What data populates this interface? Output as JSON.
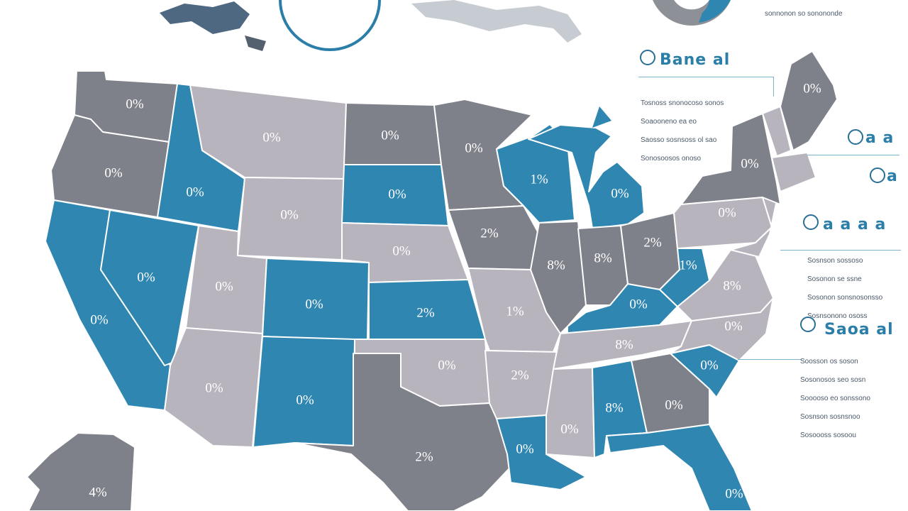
{
  "colors": {
    "dark_gray": "#7e8189",
    "light_gray": "#b7b4bd",
    "blue": "#2f86b1",
    "accent": "#2a7ea8"
  },
  "top_partial_text": "sonnonon so sonononde",
  "right_panels": [
    {
      "title": "Bane al",
      "lines": [
        "Tosnoss snonocoso sonos",
        "Soaooneno ea eo",
        "Saosso sosnsoss ol sao",
        "Sonosoosos onoso"
      ]
    },
    {
      "title": "a a"
    },
    {
      "title": "a"
    },
    {
      "title": "a a a a",
      "lines": [
        "Sosnson sossoso",
        "Sosonon se ssne",
        "Sosonon sonsnosonsso",
        "Sosnsonono ososs"
      ]
    },
    {
      "title": "Saoa al",
      "lines": [
        "Soosson os soson",
        "Sosonosos seo sosn",
        "Sooooso eo sonssono",
        "Sosnson sosnsnoo",
        "Sosoooss sosoou"
      ]
    }
  ],
  "states": [
    {
      "id": "WA",
      "label": "0%"
    },
    {
      "id": "OR",
      "label": "0%"
    },
    {
      "id": "CA",
      "label": "0%"
    },
    {
      "id": "NV",
      "label": "0%"
    },
    {
      "id": "ID",
      "label": "0%"
    },
    {
      "id": "MT",
      "label": "0%"
    },
    {
      "id": "WY",
      "label": "0%"
    },
    {
      "id": "UT",
      "label": "0%"
    },
    {
      "id": "AZ",
      "label": "0%"
    },
    {
      "id": "CO",
      "label": "0%"
    },
    {
      "id": "NM",
      "label": "0%"
    },
    {
      "id": "ND",
      "label": "0%"
    },
    {
      "id": "SD",
      "label": "0%"
    },
    {
      "id": "NE",
      "label": "0%"
    },
    {
      "id": "KS",
      "label": "2%"
    },
    {
      "id": "OK",
      "label": "0%"
    },
    {
      "id": "TX",
      "label": "2%"
    },
    {
      "id": "MN",
      "label": "0%"
    },
    {
      "id": "IA",
      "label": "2%"
    },
    {
      "id": "MO",
      "label": "1%"
    },
    {
      "id": "AR",
      "label": "2%"
    },
    {
      "id": "LA",
      "label": "0%"
    },
    {
      "id": "WI",
      "label": "1%"
    },
    {
      "id": "IL",
      "label": "8%"
    },
    {
      "id": "MI",
      "label": "0%"
    },
    {
      "id": "IN",
      "label": "8%"
    },
    {
      "id": "OH",
      "label": "2%"
    },
    {
      "id": "KY",
      "label": "0%"
    },
    {
      "id": "TN",
      "label": "8%"
    },
    {
      "id": "MS",
      "label": "0%"
    },
    {
      "id": "AL",
      "label": "8%"
    },
    {
      "id": "GA",
      "label": "0%"
    },
    {
      "id": "FL",
      "label": "0%"
    },
    {
      "id": "SC",
      "label": "0%"
    },
    {
      "id": "NC",
      "label": "0%"
    },
    {
      "id": "VA",
      "label": "8%"
    },
    {
      "id": "WV",
      "label": "1%"
    },
    {
      "id": "PA",
      "label": "0%"
    },
    {
      "id": "NY",
      "label": "0%"
    },
    {
      "id": "ME",
      "label": "0%"
    },
    {
      "id": "AK",
      "label": "4%"
    }
  ]
}
